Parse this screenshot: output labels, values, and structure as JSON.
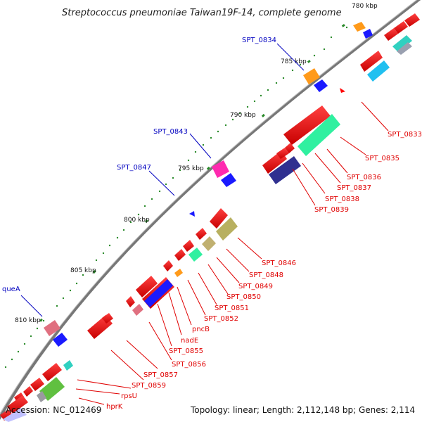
{
  "title": "Streptococcus pneumoniae Taiwan19F-14, complete genome",
  "footer": {
    "accession": "Accession: NC_012469",
    "summary": "Topology: linear; Length: 2,112,148 bp; Genes: 2,114"
  },
  "scale_labels": [
    "780 kbp",
    "785 kbp",
    "790 kbp",
    "795 kbp",
    "800 kbp",
    "805 kbp",
    "810 kbp"
  ],
  "labels_red": [
    "SPT_0833",
    "SPT_0835",
    "SPT_0836",
    "SPT_0837",
    "SPT_0838",
    "SPT_0839",
    "SPT_0846",
    "SPT_0848",
    "SPT_0849",
    "SPT_0850",
    "SPT_0851",
    "SPT_0852",
    "pncB",
    "nadE",
    "SPT_0855",
    "SPT_0856",
    "SPT_0857",
    "SPT_0859",
    "rpsU",
    "hprK"
  ],
  "labels_blue": [
    "SPT_0834",
    "SPT_0843",
    "SPT_0847",
    "queA"
  ],
  "colors": {
    "red": "#e00000",
    "blue": "#0000c0",
    "green_tick": "#2a8a2a",
    "backbone": "#777777"
  }
}
